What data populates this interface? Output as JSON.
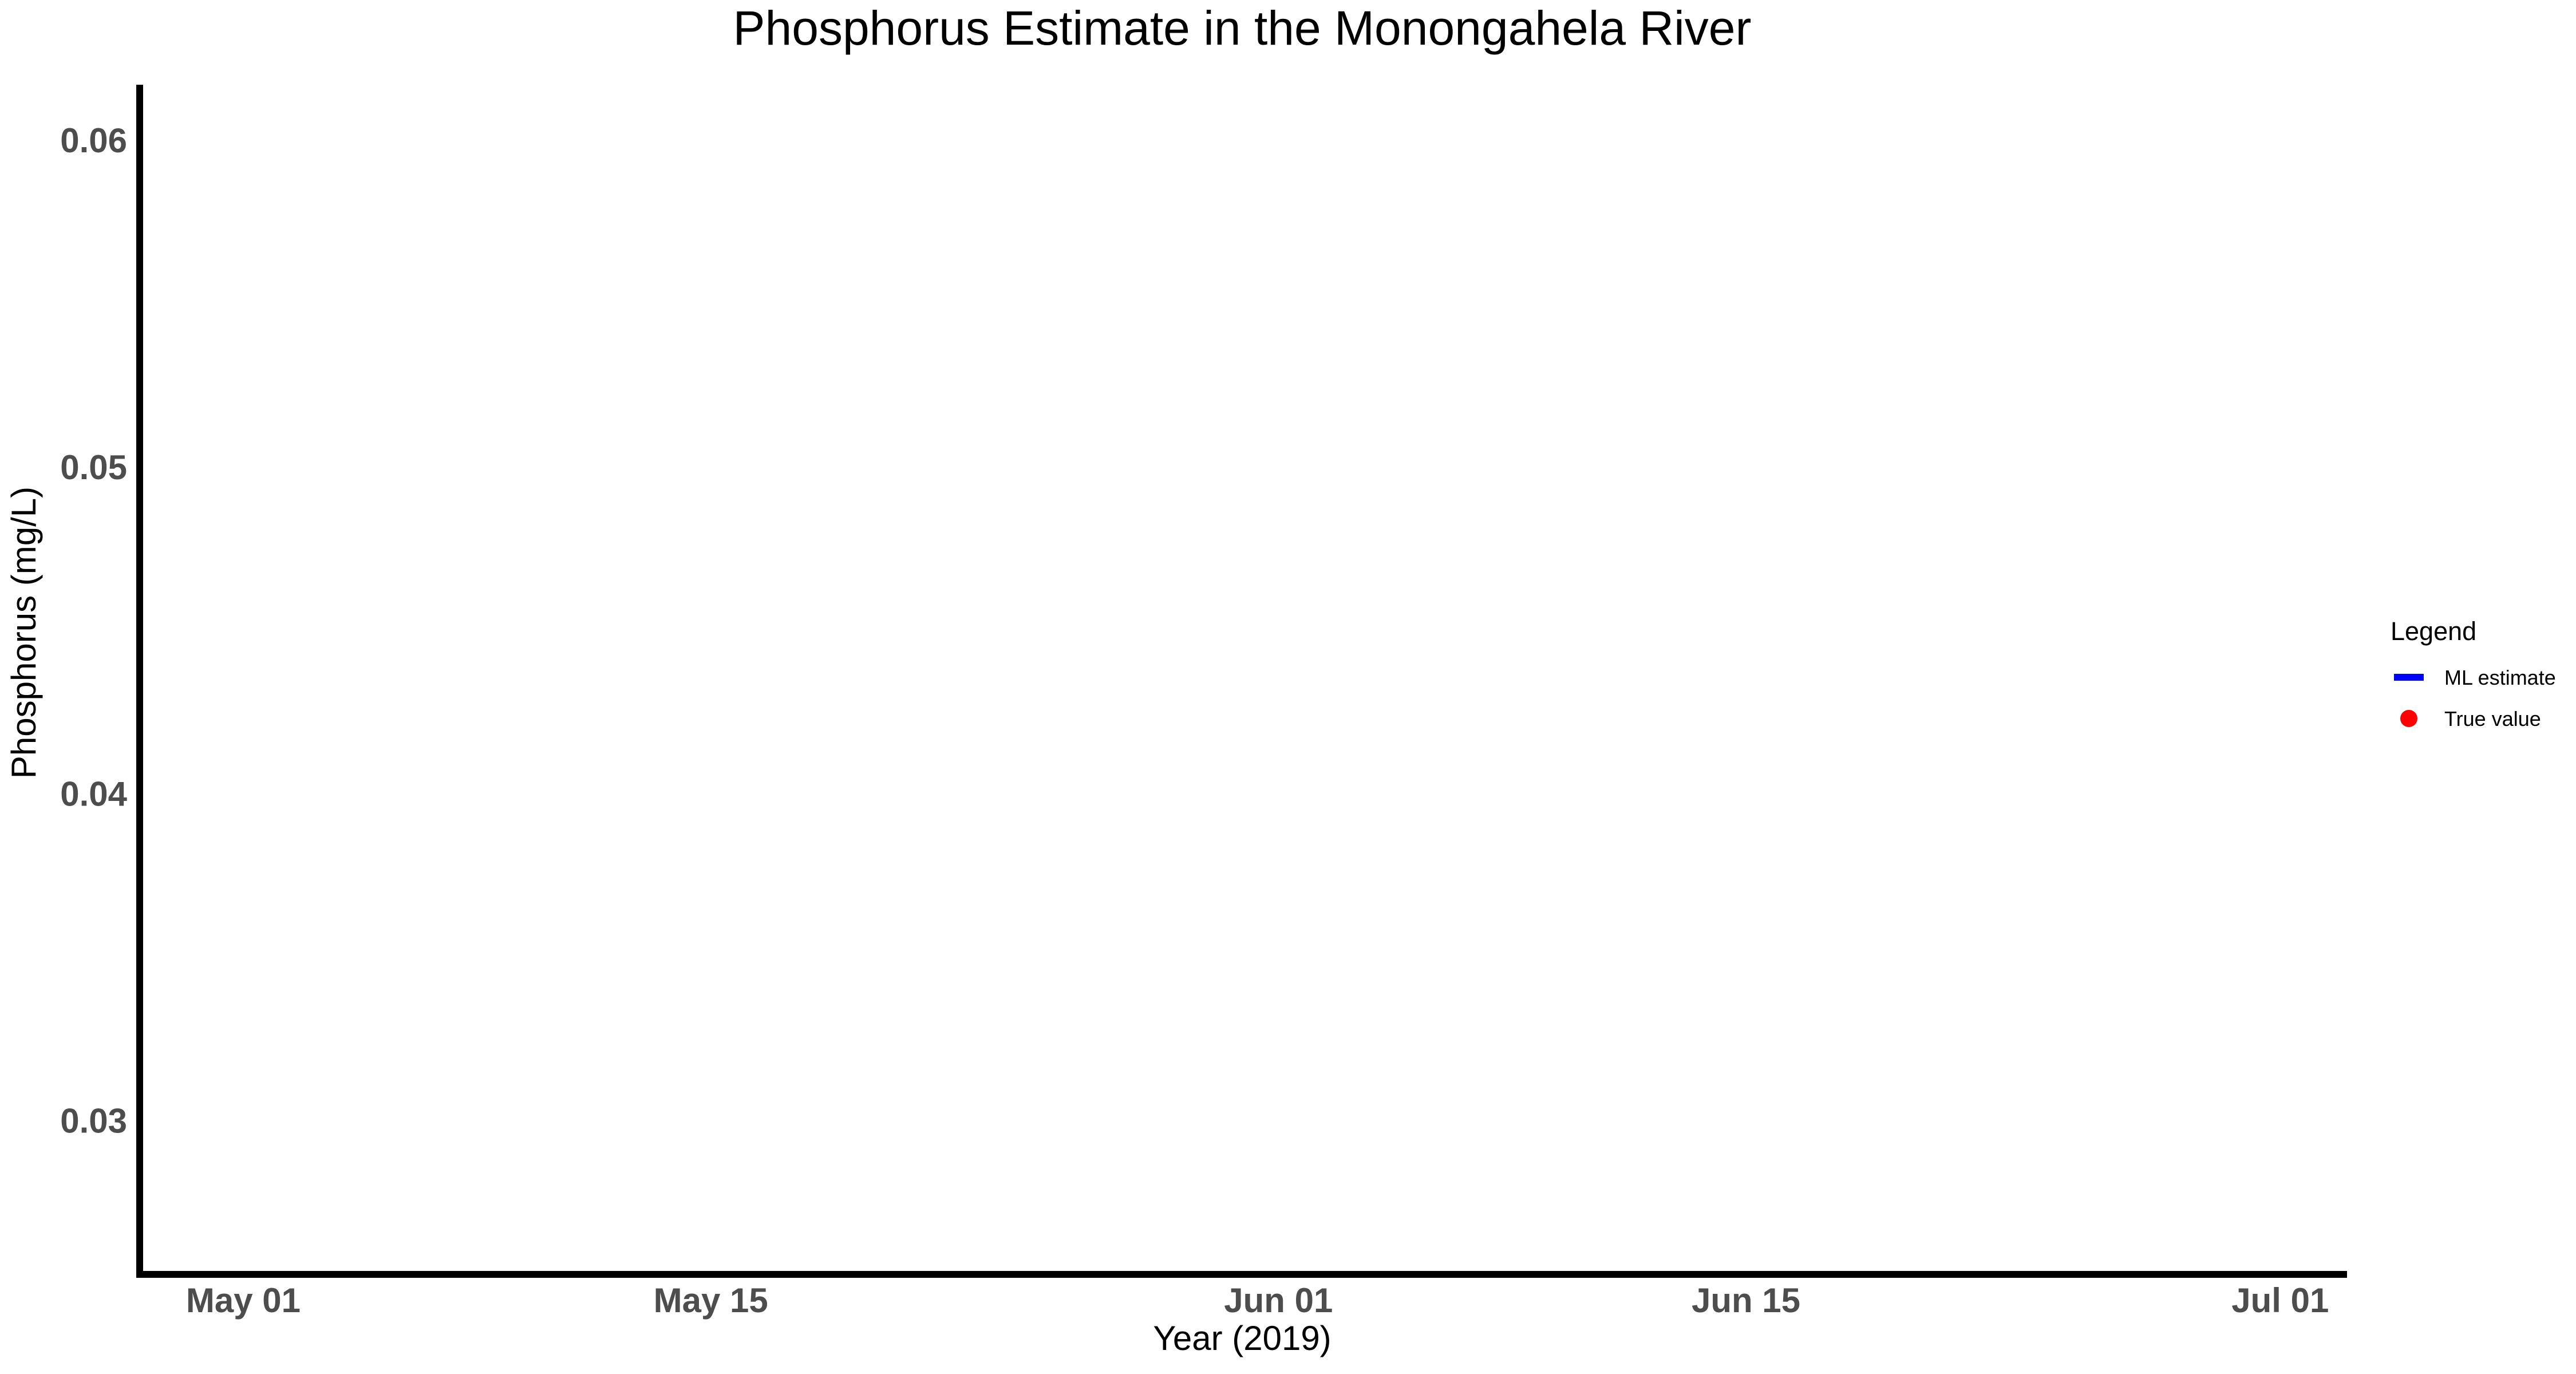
{
  "chart_data": {
    "type": "line",
    "title": "Phosphorus Estimate in the Monongahela River",
    "xlabel": "Year (2019)",
    "ylabel": "Phosphorus (mg/L)",
    "x_axis_type": "date",
    "xlim": [
      "2019-04-28",
      "2019-07-03"
    ],
    "ylim": [
      0.0254,
      0.0617
    ],
    "x_ticks": [
      {
        "value": "2019-05-01",
        "label": "May 01"
      },
      {
        "value": "2019-05-15",
        "label": "May 15"
      },
      {
        "value": "2019-06-01",
        "label": "Jun 01"
      },
      {
        "value": "2019-06-15",
        "label": "Jun 15"
      },
      {
        "value": "2019-07-01",
        "label": "Jul 01"
      }
    ],
    "y_ticks": [
      {
        "value": 0.03,
        "label": "0.03"
      },
      {
        "value": 0.04,
        "label": "0.04"
      },
      {
        "value": 0.05,
        "label": "0.05"
      },
      {
        "value": 0.06,
        "label": "0.06"
      }
    ],
    "grid": false,
    "legend": {
      "title": "Legend",
      "position": "right",
      "entries": [
        {
          "label": "ML estimate",
          "kind": "line",
          "color": "#0000ff"
        },
        {
          "label": "True value",
          "kind": "point",
          "color": "#ff0000"
        }
      ]
    },
    "series": [
      {
        "name": "ML estimate",
        "kind": "line",
        "color": "#0000ff",
        "x": [],
        "y": []
      },
      {
        "name": "True value",
        "kind": "point",
        "color": "#ff0000",
        "x": [],
        "y": []
      }
    ]
  }
}
